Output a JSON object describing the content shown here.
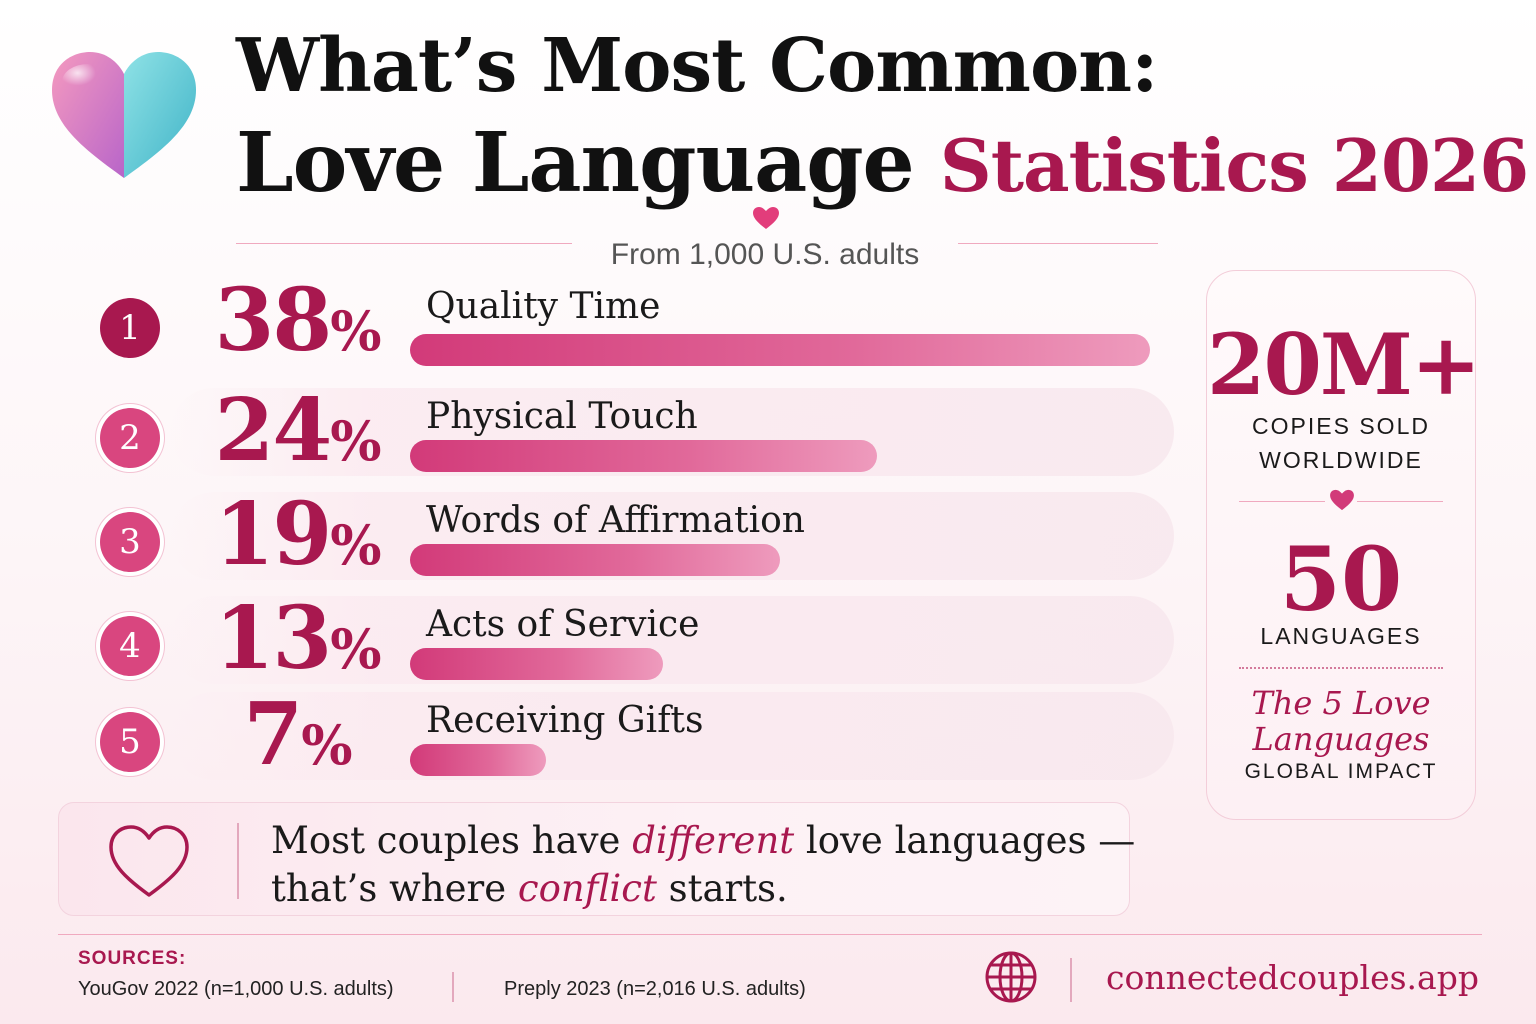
{
  "header": {
    "title_line1": "What’s Most Common:",
    "title_line2": "Love Language",
    "title_accent": "Statistics 2026",
    "subtitle": "From 1,000 U.S. adults"
  },
  "chart_data": {
    "type": "bar",
    "orientation": "horizontal",
    "categories": [
      "Quality Time",
      "Physical Touch",
      "Words of Affirmation",
      "Acts of Service",
      "Receiving Gifts"
    ],
    "values": [
      38,
      24,
      19,
      13,
      7
    ],
    "value_labels": [
      "38",
      "24",
      "19",
      "13",
      "7"
    ],
    "value_suffix": "%",
    "ranks": [
      "1",
      "2",
      "3",
      "4",
      "5"
    ],
    "xlim": [
      0,
      38
    ],
    "grid": false,
    "legend": "none",
    "title": "What’s Most Common: Love Language Statistics 2026",
    "subtitle": "From 1,000 U.S. adults"
  },
  "stats_panel": {
    "stat1_value": "20M+",
    "stat1_caption_line1": "COPIES SOLD",
    "stat1_caption_line2": "WORLDWIDE",
    "stat2_value": "50",
    "stat2_caption": "LANGUAGES",
    "book_title_line1": "The 5 Love",
    "book_title_line2": "Languages",
    "book_caption": "GLOBAL IMPACT"
  },
  "callout": {
    "line1_a": "Most couples have ",
    "line1_accent": "different",
    "line1_b": " love languages —",
    "line2_a": "that’s where ",
    "line2_accent": "conflict",
    "line2_b": " starts."
  },
  "footer": {
    "sources_heading": "SOURCES:",
    "source1": "YouGov 2022 (n=1,000 U.S. adults)",
    "source2": "Preply 2023 (n=2,016 U.S. adults)",
    "website": "connectedcouples.app"
  },
  "colors": {
    "accent": "#a8184f",
    "bar_start": "#d23a79",
    "bar_end": "#ee9bbd",
    "rank1": "#a8184f",
    "rank_other": "#d9467f"
  },
  "icons": {
    "logo": "heart-logo-icon",
    "divider": "heart-icon",
    "callout": "heart-outline-icon",
    "website": "globe-icon"
  }
}
